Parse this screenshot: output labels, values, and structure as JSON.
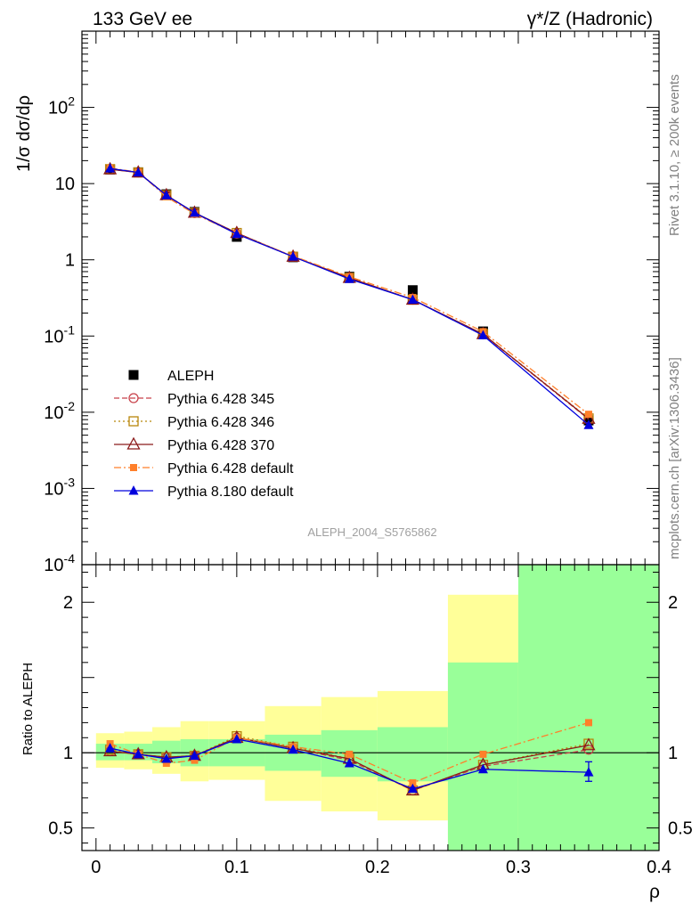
{
  "header": {
    "left_title": "133 GeV ee",
    "right_title": "γ*/Z (Hadronic)"
  },
  "side": {
    "rivet": "Rivet 3.1.10, ≥ 200k events",
    "mcplots": "mcplots.cern.ch [arXiv:1306.3436]"
  },
  "analysis_label": "ALEPH_2004_S5765862",
  "colors": {
    "data": "#000000",
    "p345": "#c8424b",
    "p346": "#b8860b",
    "p370": "#8b1a1a",
    "p6def": "#ff7f2a",
    "p8def": "#0000dd",
    "band_inner": "#99ff99",
    "band_outer": "#ffff99"
  },
  "chart_data": [
    {
      "type": "line",
      "panel": "main",
      "ylabel": "1/σ  dσ/dρ",
      "yscale": "log",
      "ylim": [
        0.0001,
        1000
      ],
      "xlim": [
        -0.01,
        0.4
      ],
      "y_tick_labels": [
        "10^-4",
        "10^-3",
        "10^-2",
        "10^-1",
        "1",
        "10",
        "10^2"
      ],
      "x": [
        0.01,
        0.03,
        0.05,
        0.07,
        0.1,
        0.14,
        0.18,
        0.225,
        0.275,
        0.35
      ],
      "legend_position": "middle-left",
      "series": [
        {
          "name": "ALEPH",
          "key": "data",
          "marker": "filled-square",
          "line": "none",
          "values": [
            15.3,
            14.1,
            7.25,
            4.25,
            2.0,
            1.08,
            0.6,
            0.4,
            0.115,
            0.0078
          ]
        },
        {
          "name": "Pythia 6.428 345",
          "key": "p345",
          "marker": "open-circle",
          "line": "dashed",
          "values": [
            15.4,
            14.0,
            7.0,
            4.1,
            2.2,
            1.1,
            0.58,
            0.3,
            0.105,
            0.0081
          ]
        },
        {
          "name": "Pythia 6.428 346",
          "key": "p346",
          "marker": "open-square",
          "line": "dotted",
          "values": [
            15.5,
            14.0,
            7.05,
            4.15,
            2.25,
            1.1,
            0.58,
            0.3,
            0.106,
            0.0083
          ]
        },
        {
          "name": "Pythia 6.428 370",
          "key": "p370",
          "marker": "open-triangle",
          "line": "solid",
          "values": [
            15.4,
            14.0,
            7.05,
            4.15,
            2.25,
            1.1,
            0.58,
            0.3,
            0.106,
            0.0082
          ]
        },
        {
          "name": "Pythia 6.428 default",
          "key": "p6def",
          "marker": "filled-small-square",
          "line": "dashdot",
          "values": [
            16.0,
            14.1,
            6.7,
            4.0,
            2.2,
            1.12,
            0.6,
            0.32,
            0.114,
            0.0094
          ]
        },
        {
          "name": "Pythia 8.180 default",
          "key": "p8def",
          "marker": "filled-triangle",
          "line": "solid",
          "values": [
            15.8,
            14.0,
            7.0,
            4.15,
            2.18,
            1.1,
            0.56,
            0.3,
            0.102,
            0.0068
          ]
        }
      ]
    },
    {
      "type": "line",
      "panel": "ratio",
      "ylabel": "Ratio to ALEPH",
      "xlabel": "ρ",
      "ylim": [
        0.35,
        2.25
      ],
      "xlim": [
        -0.01,
        0.4
      ],
      "y_ticks": [
        0.5,
        1,
        2
      ],
      "y_tick_labels": [
        "0.5",
        "1",
        "2"
      ],
      "x_ticks": [
        0,
        0.1,
        0.2,
        0.3,
        0.4
      ],
      "x_tick_labels": [
        "0",
        "0.1",
        "0.2",
        "0.3",
        "0.4"
      ],
      "x": [
        0.01,
        0.03,
        0.05,
        0.07,
        0.1,
        0.14,
        0.18,
        0.225,
        0.275,
        0.35
      ],
      "bins": [
        [
          0,
          0.02
        ],
        [
          0.02,
          0.04
        ],
        [
          0.04,
          0.06
        ],
        [
          0.06,
          0.08
        ],
        [
          0.08,
          0.12
        ],
        [
          0.12,
          0.16
        ],
        [
          0.16,
          0.2
        ],
        [
          0.2,
          0.25
        ],
        [
          0.25,
          0.3
        ],
        [
          0.3,
          0.4
        ]
      ],
      "band_inner": [
        [
          0.95,
          1.06
        ],
        [
          0.95,
          1.06
        ],
        [
          0.93,
          1.08
        ],
        [
          0.91,
          1.09
        ],
        [
          0.91,
          1.09
        ],
        [
          0.88,
          1.12
        ],
        [
          0.84,
          1.15
        ],
        [
          0.81,
          1.17
        ],
        [
          0.35,
          1.6
        ],
        [
          0.35,
          2.25
        ]
      ],
      "band_outer": [
        [
          0.9,
          1.13
        ],
        [
          0.89,
          1.14
        ],
        [
          0.86,
          1.17
        ],
        [
          0.81,
          1.21
        ],
        [
          0.82,
          1.21
        ],
        [
          0.68,
          1.31
        ],
        [
          0.61,
          1.37
        ],
        [
          0.55,
          1.41
        ],
        [
          0.35,
          2.05
        ],
        [
          0.35,
          2.25
        ]
      ],
      "reference_line": 1,
      "series": [
        {
          "key": "p345",
          "marker": "open-circle",
          "line": "dashed",
          "values": [
            1.01,
            0.99,
            0.97,
            0.98,
            1.1,
            1.03,
            0.95,
            0.75,
            0.91,
            1.02
          ]
        },
        {
          "key": "p346",
          "marker": "open-square",
          "line": "dotted",
          "values": [
            1.02,
            0.99,
            0.97,
            0.98,
            1.11,
            1.04,
            0.96,
            0.75,
            0.92,
            1.06
          ]
        },
        {
          "key": "p370",
          "marker": "open-triangle",
          "line": "solid",
          "values": [
            1.01,
            0.99,
            0.97,
            0.98,
            1.1,
            1.03,
            0.96,
            0.75,
            0.92,
            1.05
          ]
        },
        {
          "key": "p6def",
          "marker": "filled-small-square",
          "line": "dashdot",
          "values": [
            1.06,
            0.99,
            0.93,
            0.95,
            1.1,
            1.04,
            0.99,
            0.8,
            0.99,
            1.2
          ]
        },
        {
          "key": "p8def",
          "marker": "filled-triangle",
          "line": "solid",
          "values": [
            1.03,
            0.99,
            0.96,
            0.98,
            1.09,
            1.02,
            0.93,
            0.76,
            0.89,
            0.87
          ],
          "last_error": [
            0.81,
            0.94
          ]
        }
      ]
    }
  ]
}
